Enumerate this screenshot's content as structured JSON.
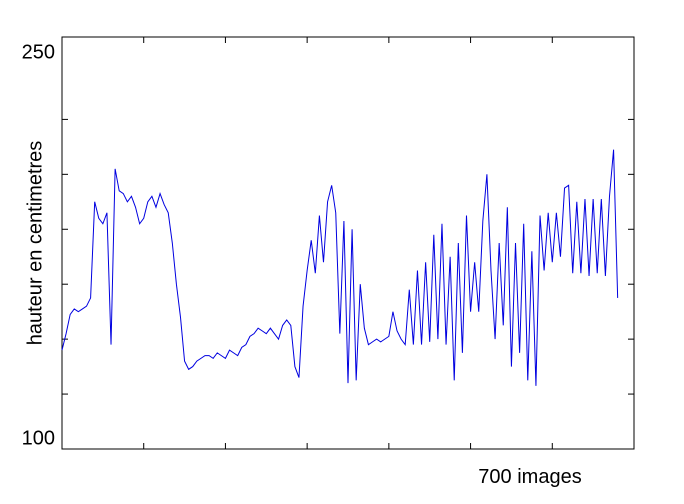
{
  "chart_data": {
    "type": "line",
    "ylabel": "hauteur en centimetres",
    "xlabel": "700 images",
    "xlim": [
      0,
      700
    ],
    "xminorticks": [
      0,
      100,
      200,
      300,
      400,
      500,
      600,
      700
    ],
    "ylim": [
      100,
      250
    ],
    "yticks": [
      100,
      250
    ],
    "yminorticks": [
      120,
      140,
      160,
      180,
      200,
      220
    ],
    "x": [
      0,
      5,
      10,
      15,
      20,
      25,
      30,
      35,
      40,
      45,
      50,
      55,
      60,
      65,
      70,
      75,
      80,
      85,
      90,
      95,
      100,
      105,
      110,
      115,
      120,
      125,
      130,
      135,
      140,
      145,
      150,
      155,
      160,
      165,
      170,
      175,
      180,
      185,
      190,
      195,
      200,
      205,
      210,
      215,
      220,
      225,
      230,
      235,
      240,
      245,
      250,
      255,
      260,
      265,
      270,
      275,
      280,
      285,
      290,
      295,
      300,
      305,
      310,
      315,
      320,
      325,
      330,
      335,
      340,
      345,
      350,
      355,
      360,
      365,
      370,
      375,
      380,
      385,
      390,
      395,
      400,
      405,
      410,
      415,
      420,
      425,
      430,
      435,
      440,
      445,
      450,
      455,
      460,
      465,
      470,
      475,
      480,
      485,
      490,
      495,
      500,
      505,
      510,
      515,
      520,
      525,
      530,
      535,
      540,
      545,
      550,
      555,
      560,
      565,
      570,
      575,
      580,
      585,
      590,
      595,
      600,
      605,
      610,
      615,
      620,
      625,
      630,
      635,
      640,
      645,
      650,
      655,
      660,
      665,
      670,
      675,
      680
    ],
    "series": [
      {
        "color": "#0000e0",
        "values": [
          136,
          142,
          149,
          151,
          150,
          151,
          152,
          155,
          190,
          184,
          182,
          186,
          138,
          202,
          194,
          193,
          190,
          192,
          188,
          182,
          184,
          190,
          192,
          188,
          193,
          189,
          186,
          175,
          160,
          148,
          132,
          129,
          130,
          132,
          133,
          134,
          134,
          133,
          135,
          134,
          133,
          136,
          135,
          134,
          137,
          138,
          141,
          142,
          144,
          143,
          142,
          144,
          142,
          140,
          145,
          147,
          145,
          130,
          126,
          152,
          165,
          176,
          164,
          185,
          168,
          190,
          196,
          186,
          142,
          183,
          124,
          180,
          125,
          160,
          144,
          138,
          139,
          140,
          139,
          140,
          141,
          150,
          143,
          140,
          138,
          158,
          138,
          165,
          138,
          168,
          139,
          178,
          140,
          182,
          138,
          170,
          125,
          175,
          135,
          185,
          150,
          168,
          150,
          183,
          200,
          165,
          140,
          175,
          145,
          188,
          130,
          175,
          135,
          182,
          125,
          172,
          123,
          185,
          165,
          186,
          168,
          186,
          170,
          195,
          196,
          164,
          190,
          164,
          191,
          163,
          191,
          164,
          191,
          163,
          192,
          209,
          155
        ]
      }
    ]
  }
}
